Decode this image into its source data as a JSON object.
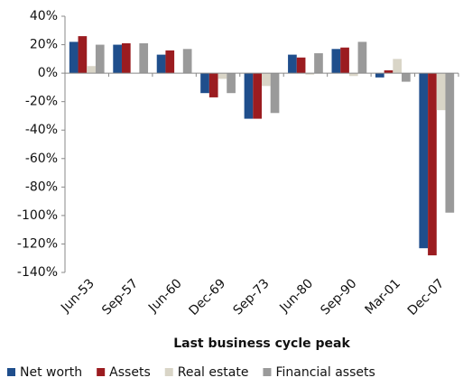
{
  "chart_data": {
    "type": "bar",
    "x_label": "Last business cycle peak",
    "categories": [
      "Jun-53",
      "Sep-57",
      "Jun-60",
      "Dec-69",
      "Sep-73",
      "Jun-80",
      "Sep-90",
      "Mar-01",
      "Dec-07"
    ],
    "series": [
      {
        "name": "Net worth",
        "color": "#1f4e8c",
        "values": [
          22,
          20,
          13,
          -14,
          -32,
          13,
          17,
          -3,
          -123
        ]
      },
      {
        "name": "Assets",
        "color": "#9b1c20",
        "values": [
          26,
          21,
          16,
          -17,
          -32,
          11,
          18,
          2,
          -128
        ]
      },
      {
        "name": "Real estate",
        "color": "#d9d5c7",
        "values": [
          5,
          0,
          0,
          -4,
          -9,
          -1,
          -2,
          10,
          -26
        ]
      },
      {
        "name": "Financial assets",
        "color": "#9a9a9a",
        "values": [
          20,
          21,
          17,
          -14,
          -28,
          14,
          22,
          -6,
          -98
        ]
      }
    ],
    "ylim": [
      -140,
      40
    ],
    "yticks": [
      {
        "value": -140,
        "label": "-140%"
      },
      {
        "value": -120,
        "label": "-120%"
      },
      {
        "value": -100,
        "label": "-100%"
      },
      {
        "value": -80,
        "label": "-80%"
      },
      {
        "value": -60,
        "label": "-60%"
      },
      {
        "value": -40,
        "label": "-40%"
      },
      {
        "value": -20,
        "label": "-20%"
      },
      {
        "value": 0,
        "label": "0%"
      },
      {
        "value": 20,
        "label": "20%"
      },
      {
        "value": 40,
        "label": "40%"
      }
    ],
    "grid": false,
    "legend": "bottom"
  }
}
